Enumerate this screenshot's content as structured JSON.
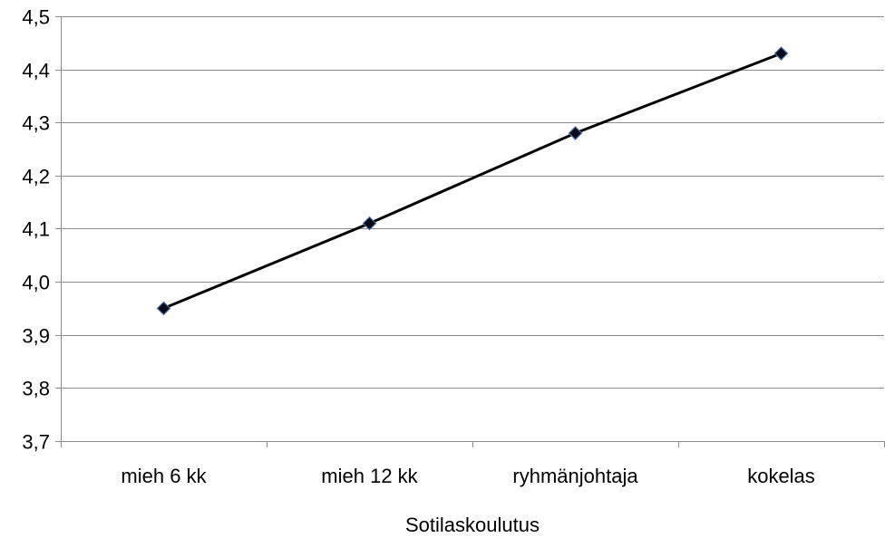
{
  "chart_data": {
    "type": "line",
    "title": "",
    "xlabel": "Sotilaskoulutus",
    "ylabel": "",
    "categories": [
      "mieh 6 kk",
      "mieh 12 kk",
      "ryhmänjohtaja",
      "kokelas"
    ],
    "series": [
      {
        "values": [
          3.95,
          4.11,
          4.28,
          4.43
        ],
        "color": "#000000",
        "marker": "diamond",
        "marker_fill": "#0a0a1a",
        "marker_stroke": "#4a6fa5"
      }
    ],
    "ylim": [
      3.7,
      4.5
    ],
    "yticks": [
      "3,7",
      "3,8",
      "3,9",
      "4,0",
      "4,1",
      "4,2",
      "4,3",
      "4,4",
      "4,5"
    ],
    "grid": true,
    "legend": "none"
  }
}
